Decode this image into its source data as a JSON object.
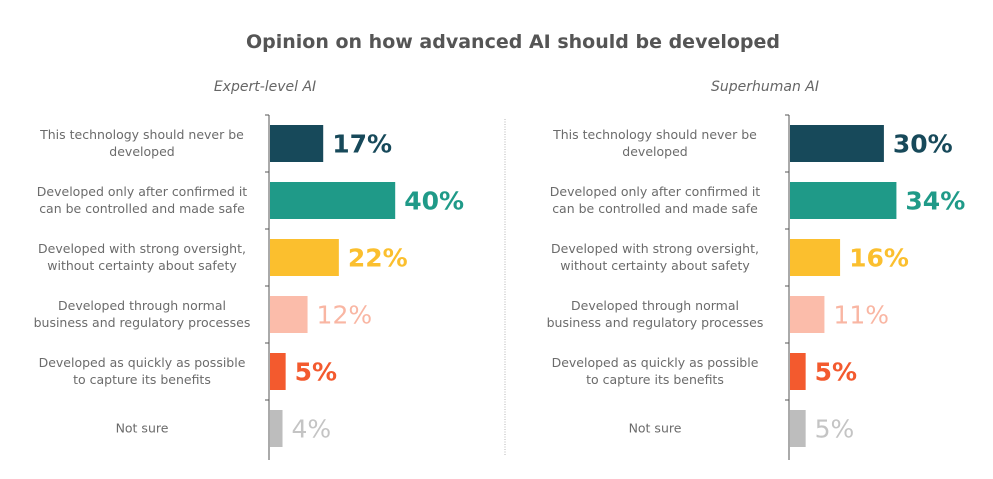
{
  "chart_data": [
    {
      "type": "bar",
      "orientation": "horizontal",
      "title": "Opinion on how advanced AI should be developed",
      "subtitle": "Expert-level AI",
      "xlabel": "",
      "ylabel": "",
      "unit": "%",
      "xlim": [
        0,
        50
      ],
      "grid": false,
      "legend": "none",
      "categories": [
        "This technology should never be developed",
        "Developed only after confirmed it can be controlled and made safe",
        "Developed with strong oversight, without certainty about safety",
        "Developed through normal business and regulatory processes",
        "Developed as quickly as possible to capture its benefits",
        "Not sure"
      ],
      "category_lines": [
        [
          "This technology should never be",
          "developed"
        ],
        [
          "Developed only after confirmed it",
          "can be controlled and made safe"
        ],
        [
          "Developed with strong oversight,",
          "without certainty about safety"
        ],
        [
          "Developed through normal",
          "business and regulatory processes"
        ],
        [
          "Developed as quickly as possible",
          "to capture its benefits"
        ],
        [
          "Not sure"
        ]
      ],
      "values": [
        17,
        40,
        22,
        12,
        5,
        4
      ],
      "value_labels": [
        "17%",
        "40%",
        "22%",
        "12%",
        "5%",
        "4%"
      ],
      "colors": [
        "#17495a",
        "#1f9a88",
        "#fbbf2e",
        "#fbbcaa",
        "#f35a2e",
        "#bdbdbd"
      ],
      "label_colors": [
        "#17495a",
        "#1f9a88",
        "#fbbf2e",
        "#f9b6a3",
        "#f35a2e",
        "#c4c4c4"
      ]
    },
    {
      "type": "bar",
      "orientation": "horizontal",
      "title": "Opinion on how advanced AI should be developed",
      "subtitle": "Superhuman AI",
      "xlabel": "",
      "ylabel": "",
      "unit": "%",
      "xlim": [
        0,
        50
      ],
      "grid": false,
      "legend": "none",
      "categories": [
        "This technology should never be developed",
        "Developed only after confirmed it can be controlled and made safe",
        "Developed with strong oversight, without certainty about safety",
        "Developed through normal business and regulatory processes",
        "Developed as quickly as possible to capture its benefits",
        "Not sure"
      ],
      "category_lines": [
        [
          "This technology should never be",
          "developed"
        ],
        [
          "Developed only after confirmed it",
          "can be controlled and made safe"
        ],
        [
          "Developed with strong oversight,",
          "without certainty about safety"
        ],
        [
          "Developed through normal",
          "business and regulatory processes"
        ],
        [
          "Developed as quickly as possible",
          "to capture its benefits"
        ],
        [
          "Not sure"
        ]
      ],
      "values": [
        30,
        34,
        16,
        11,
        5,
        5
      ],
      "value_labels": [
        "30%",
        "34%",
        "16%",
        "11%",
        "5%",
        "5%"
      ],
      "colors": [
        "#17495a",
        "#1f9a88",
        "#fbbf2e",
        "#fbbcaa",
        "#f35a2e",
        "#bdbdbd"
      ],
      "label_colors": [
        "#17495a",
        "#1f9a88",
        "#fbbf2e",
        "#f9b6a3",
        "#f35a2e",
        "#c4c4c4"
      ]
    }
  ],
  "header": {
    "title": "Opinion on how advanced AI should be developed"
  },
  "panels": {
    "left": {
      "subtitle": "Expert-level AI"
    },
    "right": {
      "subtitle": "Superhuman AI"
    }
  }
}
